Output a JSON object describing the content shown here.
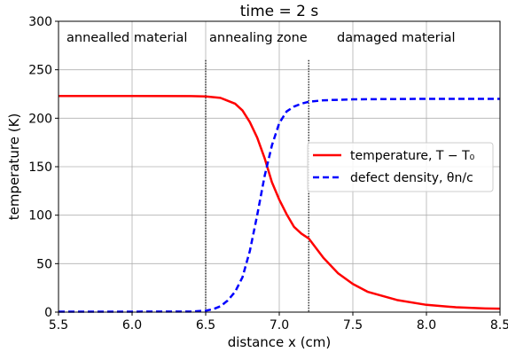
{
  "chart_data": {
    "type": "line",
    "title": "time = 2 s",
    "xlabel": "distance x (cm)",
    "ylabel": "temperature (K)",
    "xlim": [
      5.5,
      8.5
    ],
    "ylim": [
      0,
      300
    ],
    "xticks": [
      "5.5",
      "6.0",
      "6.5",
      "7.0",
      "7.5",
      "8.0",
      "8.5"
    ],
    "yticks": [
      "0",
      "50",
      "100",
      "150",
      "200",
      "250",
      "300"
    ],
    "grid": true,
    "legend_position": "center-right",
    "region_labels": [
      "annealled material",
      "annealing zone",
      "damaged material"
    ],
    "zone_boundaries": [
      6.5,
      7.2
    ],
    "zone_boundary_top": 260,
    "series": [
      {
        "name": "temperature, T − T₀",
        "color": "#ff0000",
        "style": "solid",
        "x": [
          5.5,
          6.0,
          6.4,
          6.5,
          6.6,
          6.7,
          6.75,
          6.8,
          6.85,
          6.9,
          6.95,
          7.0,
          7.05,
          7.1,
          7.15,
          7.2,
          7.3,
          7.4,
          7.5,
          7.6,
          7.8,
          8.0,
          8.2,
          8.4,
          8.5
        ],
        "values": [
          223,
          223,
          222.8,
          222.5,
          221,
          215,
          208,
          196,
          180,
          159,
          134,
          116,
          101,
          88,
          81,
          76,
          56,
          40,
          29,
          21,
          12.5,
          7.5,
          5,
          3.8,
          3.5
        ]
      },
      {
        "name": "defect density, θn/c",
        "color": "#0000ff",
        "style": "dashed",
        "x": [
          5.5,
          6.0,
          6.4,
          6.5,
          6.55,
          6.6,
          6.65,
          6.7,
          6.75,
          6.8,
          6.85,
          6.9,
          6.95,
          7.0,
          7.05,
          7.1,
          7.15,
          7.2,
          7.3,
          7.5,
          8.0,
          8.5
        ],
        "values": [
          0.5,
          0.5,
          0.6,
          1.5,
          3,
          6,
          12,
          21,
          36,
          63,
          100,
          140,
          172,
          195,
          207,
          212,
          215,
          217,
          218.5,
          219.5,
          220,
          220
        ]
      }
    ]
  }
}
